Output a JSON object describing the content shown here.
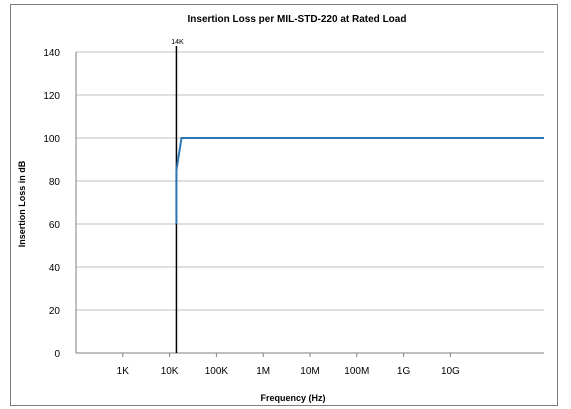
{
  "chart_data": {
    "type": "line",
    "title": "Insertion Loss per MIL-STD-220 at Rated Load",
    "xlabel": "Frequency (Hz)",
    "ylabel": "Insertion Loss in dB",
    "x_scale": "log",
    "xlim": [
      100,
      1000000000000
    ],
    "ylim": [
      0,
      140
    ],
    "y_ticks": [
      0,
      20,
      40,
      60,
      80,
      100,
      120,
      140
    ],
    "x_ticks": [
      {
        "value": 1000,
        "label": "1K"
      },
      {
        "value": 10000,
        "label": "10K"
      },
      {
        "value": 100000,
        "label": "100K"
      },
      {
        "value": 1000000,
        "label": "1M"
      },
      {
        "value": 10000000,
        "label": "10M"
      },
      {
        "value": 100000000,
        "label": "100M"
      },
      {
        "value": 1000000000,
        "label": "1G"
      },
      {
        "value": 10000000000,
        "label": "10G"
      }
    ],
    "grid": "horizontal",
    "legend": "none",
    "series": [
      {
        "color": "#2e75b6",
        "x": [
          14000,
          14000,
          18000,
          1000000000000
        ],
        "y": [
          60,
          85,
          100,
          100
        ]
      }
    ],
    "annotations": [
      {
        "type": "vertical-line",
        "x": 14000,
        "label": "14K",
        "color": "#000000"
      }
    ]
  }
}
